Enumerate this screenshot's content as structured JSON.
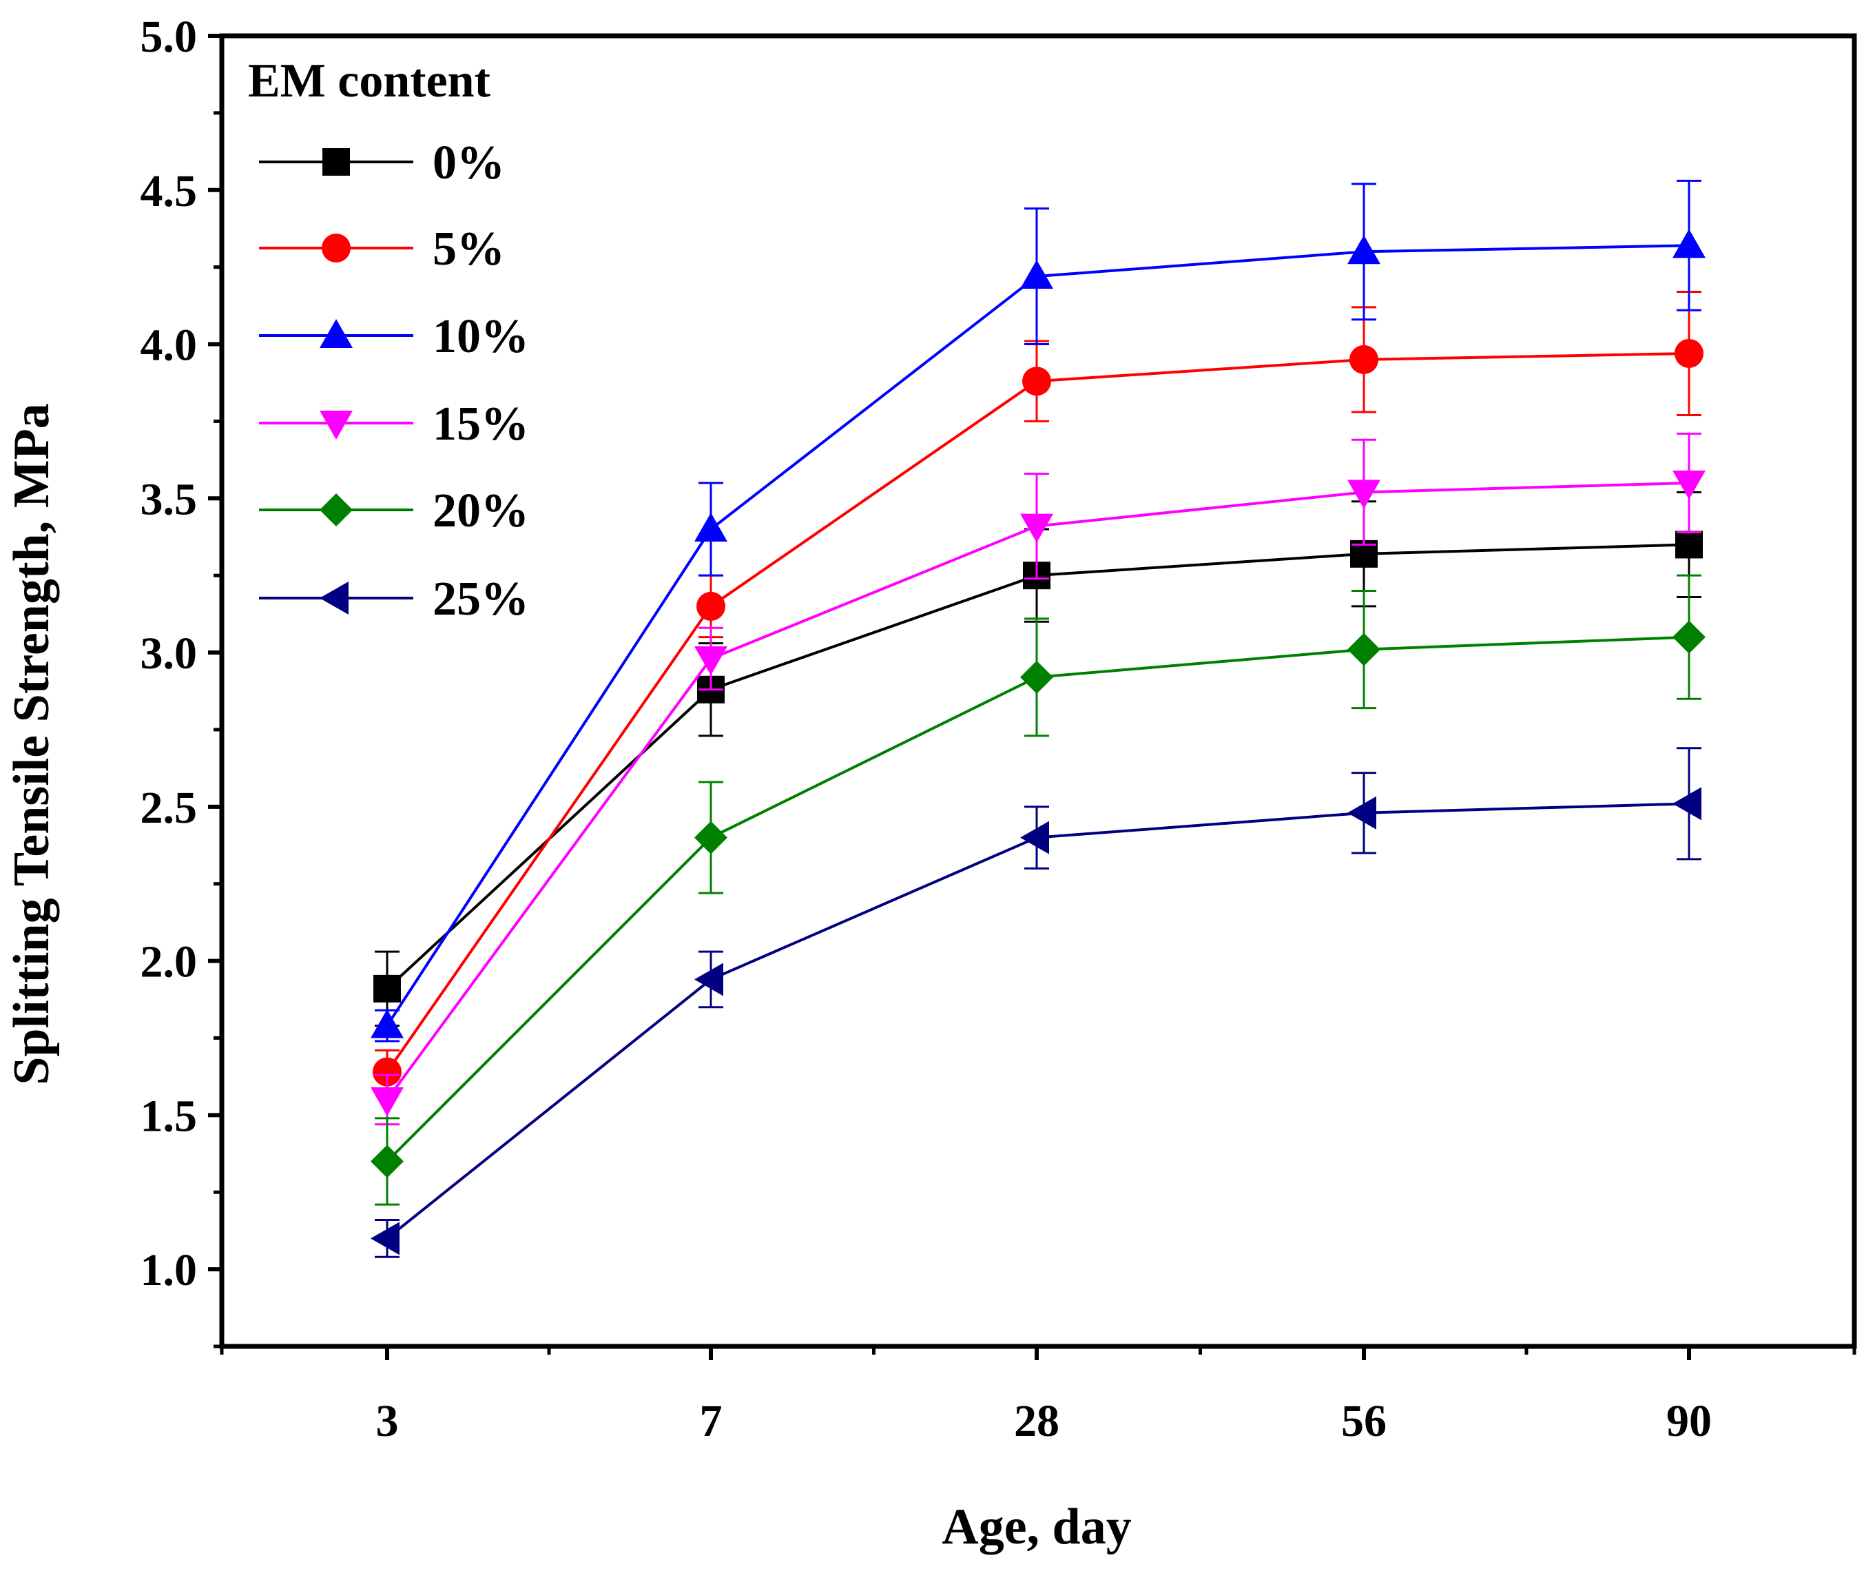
{
  "chart_data": {
    "type": "line",
    "title": "",
    "xlabel": "Age, day",
    "ylabel": "Splitting Tensile Strength, MPa",
    "categories": [
      "3",
      "7",
      "28",
      "56",
      "90"
    ],
    "ylim": [
      0.75,
      5.0
    ],
    "yticks": [
      "1.0",
      "1.5",
      "2.0",
      "2.5",
      "3.0",
      "3.5",
      "4.0",
      "4.5",
      "5.0"
    ],
    "legend_title": "EM content",
    "legend_position": "top-left",
    "grid": false,
    "series": [
      {
        "name": "0%",
        "marker": "square",
        "color": "#000000",
        "values": [
          1.91,
          2.88,
          3.25,
          3.32,
          3.35
        ],
        "errors": [
          0.12,
          0.15,
          0.15,
          0.17,
          0.17
        ]
      },
      {
        "name": "5%",
        "marker": "circle",
        "color": "#ff0000",
        "values": [
          1.64,
          3.15,
          3.88,
          3.95,
          3.97
        ],
        "errors": [
          0.07,
          0.1,
          0.13,
          0.17,
          0.2
        ]
      },
      {
        "name": "10%",
        "marker": "triangle-up",
        "color": "#0000ff",
        "values": [
          1.79,
          3.4,
          4.22,
          4.3,
          4.32
        ],
        "errors": [
          0.05,
          0.15,
          0.22,
          0.22,
          0.21
        ]
      },
      {
        "name": "15%",
        "marker": "triangle-down",
        "color": "#ff00ff",
        "values": [
          1.55,
          2.98,
          3.41,
          3.52,
          3.55
        ],
        "errors": [
          0.08,
          0.1,
          0.17,
          0.17,
          0.16
        ]
      },
      {
        "name": "20%",
        "marker": "diamond",
        "color": "#008000",
        "values": [
          1.35,
          2.4,
          2.92,
          3.01,
          3.05
        ],
        "errors": [
          0.14,
          0.18,
          0.19,
          0.19,
          0.2
        ]
      },
      {
        "name": "25%",
        "marker": "triangle-left",
        "color": "#000080",
        "values": [
          1.1,
          1.94,
          2.4,
          2.48,
          2.51
        ],
        "errors": [
          0.06,
          0.09,
          0.1,
          0.13,
          0.18
        ]
      }
    ]
  }
}
